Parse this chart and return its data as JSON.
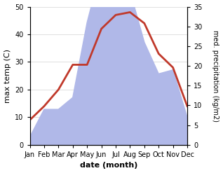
{
  "months": [
    "Jan",
    "Feb",
    "Mar",
    "Apr",
    "May",
    "Jun",
    "Jul",
    "Aug",
    "Sep",
    "Oct",
    "Nov",
    "Dec"
  ],
  "temp": [
    9,
    14,
    20,
    29,
    29,
    42,
    47,
    48,
    44,
    33,
    28,
    14
  ],
  "precip_right": [
    2,
    9,
    9,
    12,
    31,
    45,
    40,
    39,
    26,
    18,
    19,
    7
  ],
  "temp_color": "#c0392b",
  "precip_color": "#b0b8e8",
  "left_ylim": [
    0,
    50
  ],
  "right_ylim": [
    0,
    35
  ],
  "left_yticks": [
    0,
    10,
    20,
    30,
    40,
    50
  ],
  "right_yticks": [
    0,
    5,
    10,
    15,
    20,
    25,
    30,
    35
  ],
  "xlabel": "date (month)",
  "ylabel_left": "max temp (C)",
  "ylabel_right": "med. precipitation (kg/m2)",
  "temp_linewidth": 2.0
}
